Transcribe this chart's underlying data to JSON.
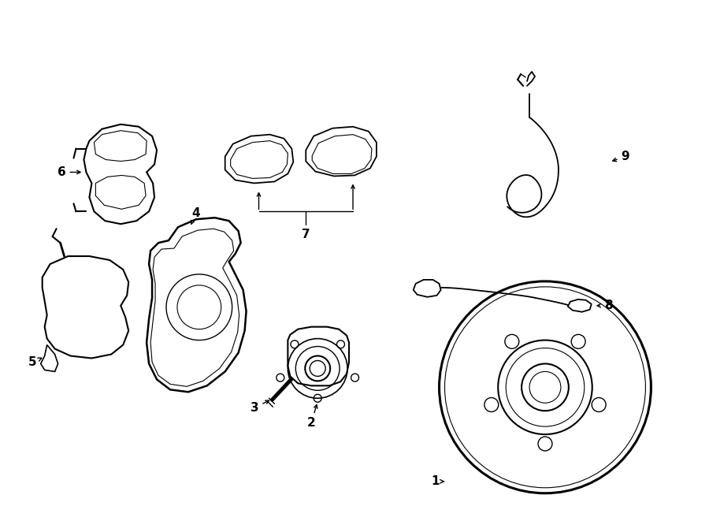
{
  "bg_color": "#ffffff",
  "line_color": "#000000",
  "lw": 1.3,
  "fig_width": 9.0,
  "fig_height": 6.61,
  "dpi": 100
}
